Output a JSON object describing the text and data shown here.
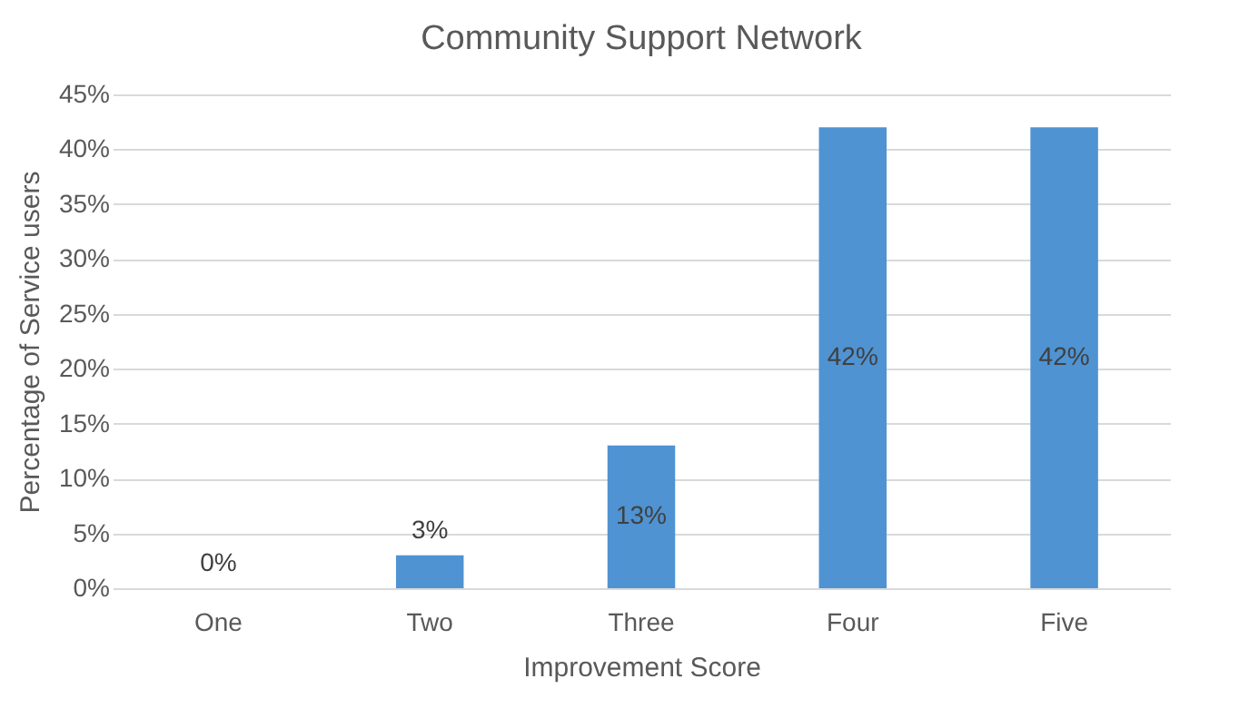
{
  "chart_data": {
    "type": "bar",
    "title": "Community Support Network",
    "xlabel": "Improvement Score",
    "ylabel": "Percentage of Service users",
    "categories": [
      "One",
      "Two",
      "Three",
      "Four",
      "Five"
    ],
    "values": [
      0,
      3,
      13,
      42,
      42
    ],
    "value_labels": [
      "0%",
      "3%",
      "13%",
      "42%",
      "42%"
    ],
    "color": "#4f93d2",
    "ylim": [
      0,
      45
    ],
    "yticks": [
      {
        "value": 0,
        "label": "0%"
      },
      {
        "value": 5,
        "label": "5%"
      },
      {
        "value": 10,
        "label": "10%"
      },
      {
        "value": 15,
        "label": "15%"
      },
      {
        "value": 20,
        "label": "20%"
      },
      {
        "value": 25,
        "label": "25%"
      },
      {
        "value": 30,
        "label": "30%"
      },
      {
        "value": 35,
        "label": "35%"
      },
      {
        "value": 40,
        "label": "40%"
      },
      {
        "value": 45,
        "label": "45%"
      }
    ],
    "grid": "y"
  }
}
